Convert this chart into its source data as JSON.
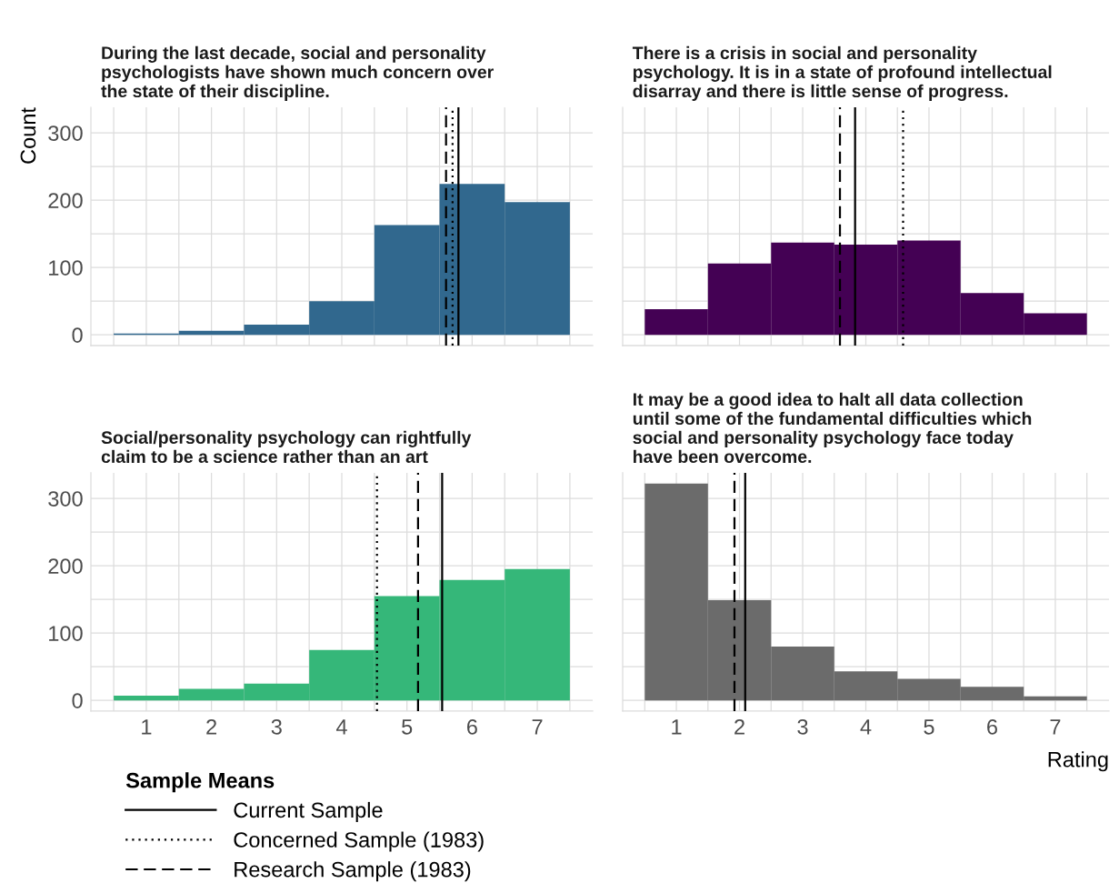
{
  "chart_data": [
    {
      "type": "histogram",
      "title": "During the last decade, social and personality\npsychologists have shown much concern over\nthe state of their discipline.",
      "ylabel": "Count",
      "bins": [
        0.5,
        1.5,
        2.5,
        3.5,
        4.5,
        5.5,
        6.5,
        7.5
      ],
      "values": [
        2,
        6,
        15,
        50,
        163,
        224,
        197
      ],
      "color": "#31688e",
      "xlim": [
        0.15,
        7.85
      ],
      "ylim": [
        -16,
        338
      ],
      "xticks": [
        1,
        2,
        3,
        4,
        5,
        6,
        7
      ],
      "yticks": [
        0,
        100,
        200,
        300
      ],
      "grid": true,
      "tick_labels": "y",
      "ref_lines": [
        {
          "axis": "x",
          "value": 5.79,
          "color": "#000000",
          "line_style": "solid"
        },
        {
          "axis": "x",
          "value": 5.7,
          "color": "#000000",
          "line_style": "dotted"
        },
        {
          "axis": "x",
          "value": 5.6,
          "color": "#000000",
          "line_style": "dashed"
        }
      ]
    },
    {
      "type": "histogram",
      "title": "There is a crisis in social and personality\npsychology. It is in a state of profound intellectual\ndisarray and there is little sense of progress.",
      "bins": [
        0.5,
        1.5,
        2.5,
        3.5,
        4.5,
        5.5,
        6.5,
        7.5
      ],
      "values": [
        38,
        106,
        137,
        134,
        140,
        62,
        32
      ],
      "color": "#440154",
      "xlim": [
        0.15,
        7.85
      ],
      "ylim": [
        -16,
        338
      ],
      "xticks": [
        1,
        2,
        3,
        4,
        5,
        6,
        7
      ],
      "yticks": [
        0,
        100,
        200,
        300
      ],
      "grid": true,
      "tick_labels": false,
      "ref_lines": [
        {
          "axis": "x",
          "value": 3.83,
          "color": "#000000",
          "line_style": "solid"
        },
        {
          "axis": "x",
          "value": 4.59,
          "color": "#000000",
          "line_style": "dotted"
        },
        {
          "axis": "x",
          "value": 3.59,
          "color": "#000000",
          "line_style": "dashed"
        }
      ]
    },
    {
      "type": "histogram",
      "title": "Social/personality psychology can rightfully\nclaim to be a science rather than an art",
      "bins": [
        0.5,
        1.5,
        2.5,
        3.5,
        4.5,
        5.5,
        6.5,
        7.5
      ],
      "values": [
        7,
        17,
        25,
        75,
        155,
        179,
        195
      ],
      "color": "#35b779",
      "xlim": [
        0.15,
        7.85
      ],
      "ylim": [
        -16,
        338
      ],
      "xticks": [
        1,
        2,
        3,
        4,
        5,
        6,
        7
      ],
      "yticks": [
        0,
        100,
        200,
        300
      ],
      "grid": true,
      "legend": "bottom",
      "legend_title": "Sample Means",
      "ref_lines": [
        {
          "axis": "x",
          "value": 5.54,
          "color": "#000000",
          "line_style": "solid",
          "label": "Current Sample"
        },
        {
          "axis": "x",
          "value": 4.54,
          "color": "#000000",
          "line_style": "dotted",
          "label": "Concerned Sample (1983)"
        },
        {
          "axis": "x",
          "value": 5.17,
          "color": "#000000",
          "line_style": "dashed",
          "label": "Research Sample (1983)"
        }
      ]
    },
    {
      "type": "histogram",
      "title": "It may be a good idea to halt all data collection\nuntil some of the fundamental difficulties which\nsocial and personality psychology face today\nhave been overcome.",
      "xlabel": "Rating",
      "bins": [
        0.5,
        1.5,
        2.5,
        3.5,
        4.5,
        5.5,
        6.5,
        7.5
      ],
      "values": [
        322,
        149,
        80,
        43,
        32,
        20,
        6
      ],
      "color": "#6b6b6b",
      "xlim": [
        0.15,
        7.85
      ],
      "ylim": [
        -16,
        338
      ],
      "xticks": [
        1,
        2,
        3,
        4,
        5,
        6,
        7
      ],
      "yticks": [
        0,
        100,
        200,
        300
      ],
      "grid": true,
      "tick_labels": "x",
      "ref_lines": [
        {
          "axis": "x",
          "value": 2.09,
          "color": "#000000",
          "line_style": "solid"
        },
        {
          "axis": "x",
          "value": 1.92,
          "color": "#000000",
          "line_style": "dashed"
        }
      ]
    }
  ]
}
